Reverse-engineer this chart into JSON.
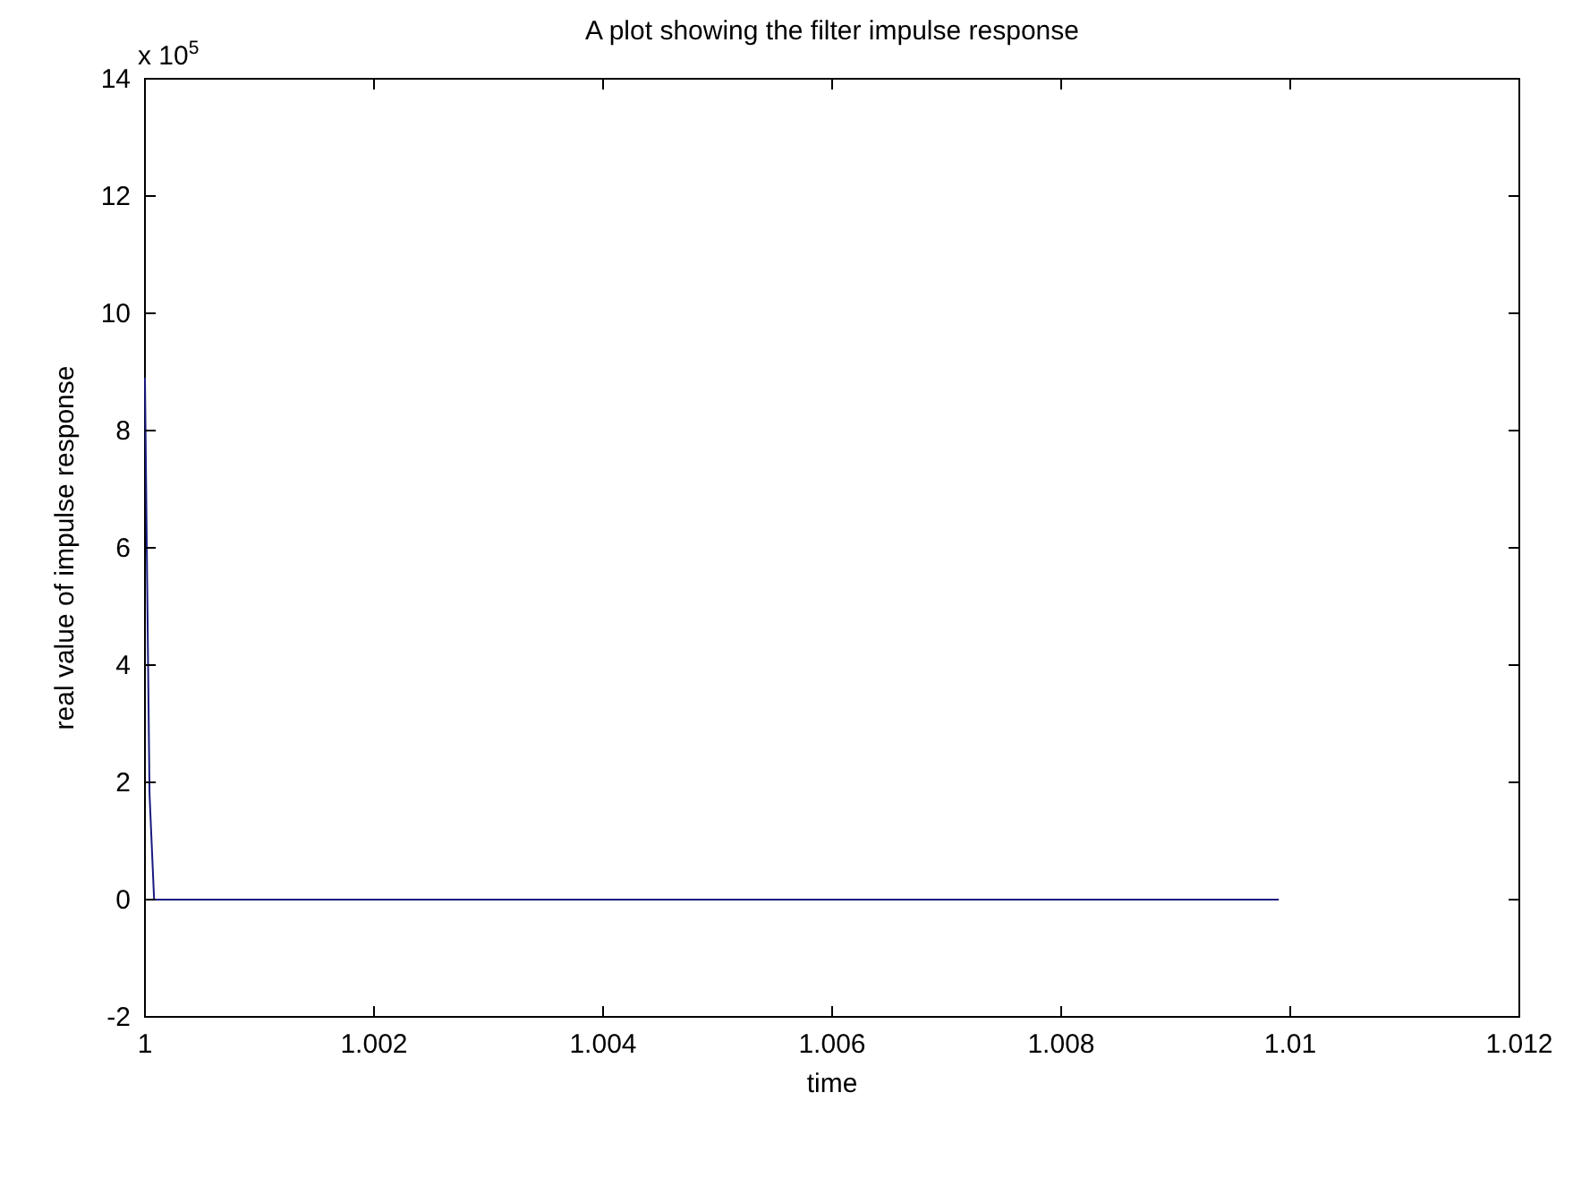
{
  "chart_data": {
    "type": "line",
    "title": "A plot showing the filter impulse response",
    "xlabel": "time",
    "ylabel": "real value of impulse response",
    "annotations": [
      "x 10$^{5}$"
    ],
    "x": [
      1.0,
      1.00002,
      1.00004,
      1.00008,
      1.0099
    ],
    "series": [
      {
        "color": "#1a1a80",
        "values": [
          8.9,
          5.3,
          1.8,
          0,
          0
        ]
      }
    ],
    "xlim": [
      1.0,
      1.012
    ],
    "xticks": [
      1,
      1.002,
      1.004,
      1.006,
      1.008,
      1.01,
      1.012
    ],
    "ylim": [
      -2,
      14
    ],
    "yticks": [
      -2,
      0,
      2,
      4,
      6,
      8,
      10,
      12,
      14
    ],
    "grid": false,
    "marker": "none",
    "line_style": "solid"
  }
}
